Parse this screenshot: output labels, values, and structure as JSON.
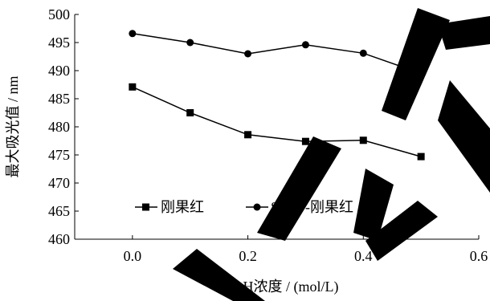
{
  "chart_data": {
    "type": "line",
    "xlabel": "NaOH浓度 / (mol/L)",
    "ylabel": "最大吸光值 / nm",
    "xlim": [
      -0.1,
      0.6
    ],
    "ylim": [
      460,
      500
    ],
    "x_ticks": [
      "0.0",
      "0.2",
      "0.4",
      "0.6"
    ],
    "x_tick_values": [
      0.0,
      0.2,
      0.4,
      0.6
    ],
    "y_ticks": [
      "460",
      "465",
      "470",
      "475",
      "480",
      "485",
      "490",
      "495",
      "500"
    ],
    "y_tick_values": [
      460,
      465,
      470,
      475,
      480,
      485,
      490,
      495,
      500
    ],
    "grid": false,
    "legend_position": "bottom-left",
    "series": [
      {
        "name": "刚果红",
        "marker": "square",
        "x": [
          0.0,
          0.1,
          0.2,
          0.3,
          0.4,
          0.5
        ],
        "y": [
          487.1,
          482.5,
          478.6,
          477.4,
          477.6,
          474.7
        ]
      },
      {
        "name": "SPKP-刚果红",
        "marker": "circle",
        "x": [
          0.0,
          0.1,
          0.2,
          0.3,
          0.4,
          0.5
        ],
        "y": [
          496.6,
          495.0,
          493.0,
          494.6,
          493.1,
          489.5
        ]
      }
    ]
  }
}
